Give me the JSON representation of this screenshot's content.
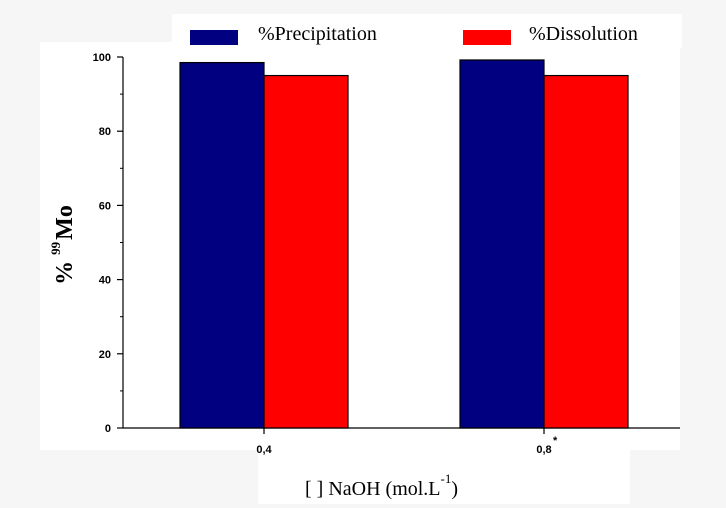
{
  "chart_data": {
    "type": "bar",
    "categories": [
      "0,4",
      "0,8"
    ],
    "category_marks": [
      "",
      "*"
    ],
    "series": [
      {
        "name": "%Precipitation",
        "color": "#000080",
        "values": [
          98.5,
          99.2
        ]
      },
      {
        "name": "%Dissolution",
        "color": "#ff0000",
        "values": [
          95.0,
          95.0
        ]
      }
    ],
    "ylim": [
      0,
      100
    ],
    "yticks": [
      0,
      20,
      40,
      60,
      80,
      100
    ],
    "ytick_labels": [
      "0",
      "20",
      "40",
      "60",
      "80",
      "100"
    ],
    "ylabel": {
      "prefix": "%",
      "superscript": "99",
      "main": "Mo"
    },
    "xlabel": {
      "main": "[ ] NaOH (mol.L",
      "superscript": "-1",
      "suffix": ")"
    },
    "legend_placement": "top",
    "grid": false
  }
}
